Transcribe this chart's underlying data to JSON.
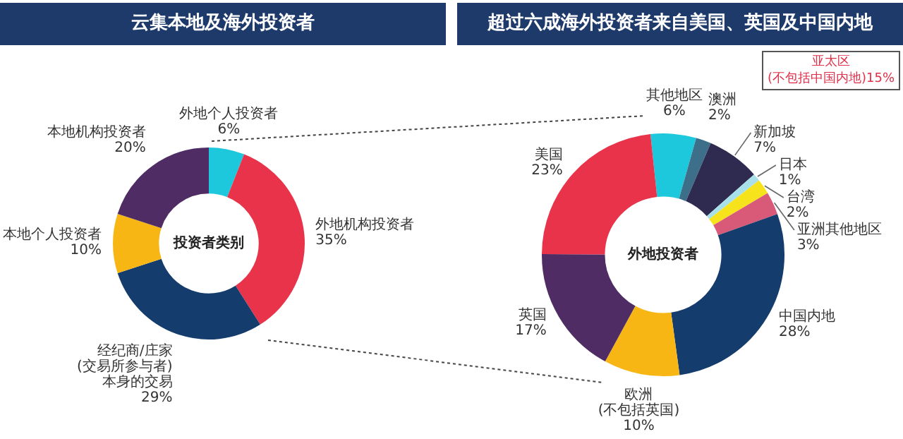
{
  "chart_data": [
    {
      "type": "donut",
      "title": "云集本地及海外投资者",
      "categories": [
        "外地个人投资者",
        "外地机构投资者",
        "经纪商/庄家(交易所参与者)本身的交易",
        "本地个人投资者",
        "本地机构投资者"
      ],
      "values": [
        6,
        35,
        29,
        10,
        20
      ],
      "value_labels": [
        "6%",
        "35%",
        "29%",
        "10%",
        "20%"
      ],
      "colors": [
        "#1ec8dc",
        "#e8334a",
        "#143c6c",
        "#f8b615",
        "#4f2d64"
      ],
      "annotations": [
        "投资者类别"
      ],
      "legend": false
    },
    {
      "type": "donut",
      "title": "超过六成海外投资者来自美国、英国及中国内地",
      "categories": [
        "其他地区",
        "澳洲",
        "新加坡",
        "日本",
        "台湾",
        "亚洲其他地区",
        "中国内地",
        "欧洲(不包括英国)",
        "英国",
        "美国"
      ],
      "values": [
        6,
        2,
        7,
        1,
        2,
        3,
        28,
        10,
        17,
        23
      ],
      "value_labels": [
        "6%",
        "2%",
        "7%",
        "1%",
        "2%",
        "3%",
        "28%",
        "10%",
        "17%",
        "23%"
      ],
      "colors": [
        "#1ec8dc",
        "#3e6f8a",
        "#2e2a50",
        "#a8e0ea",
        "#f7e31c",
        "#d95a78",
        "#143c6c",
        "#f8b615",
        "#4f2d64",
        "#e8334a"
      ],
      "annotations": [
        "外地投资者",
        "亚太区(不包括中国内地)15%"
      ],
      "legend": false
    }
  ]
}
